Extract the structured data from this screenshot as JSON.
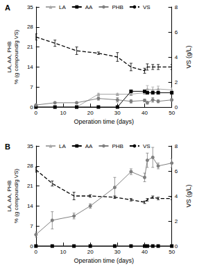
{
  "chart_data": [
    {
      "type": "line",
      "title": "A",
      "x_label": "Operation time (days)",
      "y_label": "LA, AA, PHB\n% (g compound/g VS)",
      "y2_label": "VS (g/L)",
      "xlim": [
        0,
        50
      ],
      "xticks": [
        0,
        10,
        20,
        30,
        40,
        50
      ],
      "ylim": [
        0,
        35
      ],
      "yticks": [
        0,
        7,
        14,
        21,
        28,
        35
      ],
      "y2lim": [
        0,
        8
      ],
      "y2ticks": [
        0,
        2,
        4,
        6,
        8
      ],
      "legend": "top",
      "grid": false,
      "x": [
        0,
        7,
        15,
        23,
        30,
        35,
        40,
        41,
        43,
        45,
        50
      ],
      "series": [
        {
          "name": "LA",
          "color": "#a6a6a6",
          "marker": "triangle",
          "line_style": "solid",
          "values": [
            0,
            0,
            0,
            4.5,
            4.5,
            4.5,
            5,
            6.3,
            6,
            6.3,
            6
          ],
          "errors": [
            0,
            0,
            0,
            0.3,
            0.3,
            0.3,
            0.3,
            1.2,
            1,
            1,
            0.8
          ]
        },
        {
          "name": "AA",
          "color": "#000000",
          "marker": "rect",
          "line_style": "solid",
          "values": [
            0,
            0,
            0,
            0,
            0,
            5.5,
            5.5,
            5,
            5,
            5,
            5
          ],
          "errors": [
            0,
            0,
            0,
            0,
            0,
            0.3,
            0.3,
            0.3,
            0.3,
            0.3,
            0.3
          ]
        },
        {
          "name": "PHB",
          "color": "#7f7f7f",
          "marker": "circle",
          "line_style": "solid",
          "values": [
            0.7,
            1.5,
            1.5,
            3,
            2.5,
            2,
            2.3,
            1.5,
            2.5,
            2,
            2.5
          ],
          "errors": [
            0.3,
            0.3,
            0.3,
            0.6,
            0.8,
            0.6,
            0.5,
            0.5,
            0.8,
            0.5,
            0.5
          ]
        },
        {
          "name": "VS",
          "color": "#000000",
          "marker": "none",
          "line_style": "dashed",
          "axis": "y2",
          "values": [
            5.6,
            5.1,
            4.5,
            4.3,
            4.0,
            3.2,
            2.9,
            3.2,
            3.2,
            3.2,
            3.2
          ],
          "errors": [
            0.25,
            0.25,
            0.3,
            0.1,
            0.35,
            0.3,
            0.2,
            0.25,
            0.2,
            0.2,
            0.2
          ]
        }
      ]
    },
    {
      "type": "line",
      "title": "B",
      "x_label": "Operation time (days)",
      "y_label": "LA, AA, PHB\n% (g compound/g VS)",
      "y2_label": "VS (g/L)",
      "xlim": [
        0,
        50
      ],
      "xticks": [
        0,
        10,
        20,
        30,
        40,
        50
      ],
      "ylim": [
        0,
        35
      ],
      "yticks": [
        0,
        7,
        14,
        21,
        28,
        35
      ],
      "y2lim": [
        0,
        8
      ],
      "y2ticks": [
        0,
        2,
        4,
        6,
        8
      ],
      "legend": "top",
      "grid": false,
      "x": [
        0,
        6,
        14,
        20,
        29,
        35,
        40,
        41,
        43,
        45,
        50
      ],
      "series": [
        {
          "name": "LA",
          "color": "#a6a6a6",
          "marker": "triangle",
          "line_style": "solid",
          "values": [
            0,
            0,
            0,
            0,
            0,
            0,
            0,
            0,
            0,
            0,
            0
          ]
        },
        {
          "name": "AA",
          "color": "#000000",
          "marker": "rect",
          "line_style": "solid",
          "values": [
            0,
            0,
            0,
            0,
            0,
            0,
            0,
            0,
            0,
            0,
            0
          ]
        },
        {
          "name": "PHB",
          "color": "#7f7f7f",
          "marker": "circle",
          "line_style": "solid",
          "values": [
            4,
            9,
            10.5,
            14,
            20.5,
            26,
            24,
            30,
            31,
            28,
            29
          ],
          "errors": [
            1,
            3,
            1,
            0.8,
            3.5,
            1,
            1.5,
            2.5,
            3.5,
            1,
            1.5
          ]
        },
        {
          "name": "VS",
          "color": "#000000",
          "marker": "none",
          "line_style": "dashed",
          "axis": "y2",
          "values": [
            6.1,
            5.0,
            4.0,
            4.0,
            3.9,
            3.7,
            3.5,
            3.7,
            3.9,
            3.8,
            3.8
          ],
          "errors": [
            0.2,
            0.2,
            0.3,
            0.1,
            0.1,
            0.1,
            0.1,
            0.1,
            0.1,
            0.1,
            0.1
          ]
        }
      ]
    }
  ]
}
